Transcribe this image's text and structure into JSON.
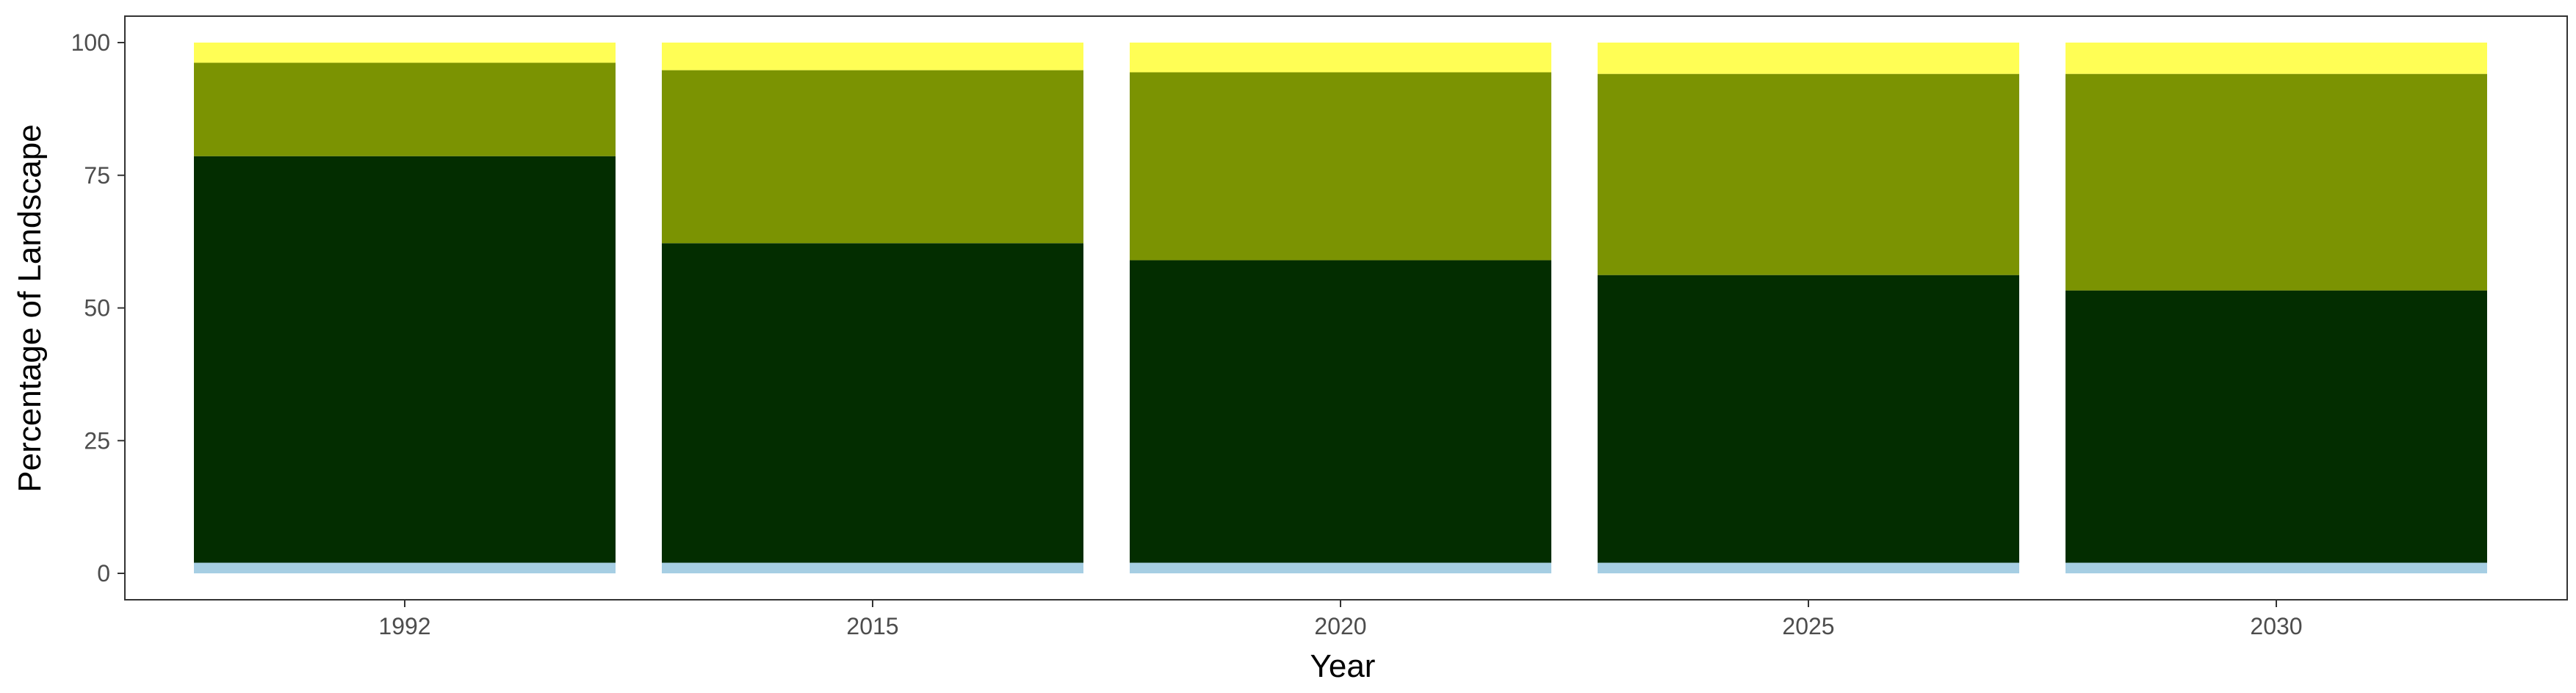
{
  "chart_data": {
    "type": "bar",
    "stacked": true,
    "title": "",
    "xlabel": "Year",
    "ylabel": "Percentage of Landscape",
    "categories": [
      "1992",
      "2015",
      "2020",
      "2025",
      "2030"
    ],
    "ylim": [
      0,
      100
    ],
    "yticks": [
      0,
      25,
      50,
      75,
      100
    ],
    "grid": false,
    "legend": "none",
    "series": [
      {
        "color": "#a6cee3",
        "values": [
          2.0,
          2.0,
          2.0,
          2.0,
          2.0
        ]
      },
      {
        "color": "#032d00",
        "values": [
          76.6,
          60.2,
          57.0,
          54.2,
          51.3
        ]
      },
      {
        "color": "#7b9302",
        "values": [
          17.6,
          32.6,
          35.4,
          37.9,
          40.8
        ]
      },
      {
        "color": "#fffe55",
        "values": [
          3.8,
          5.2,
          5.6,
          5.9,
          5.9
        ]
      }
    ]
  }
}
